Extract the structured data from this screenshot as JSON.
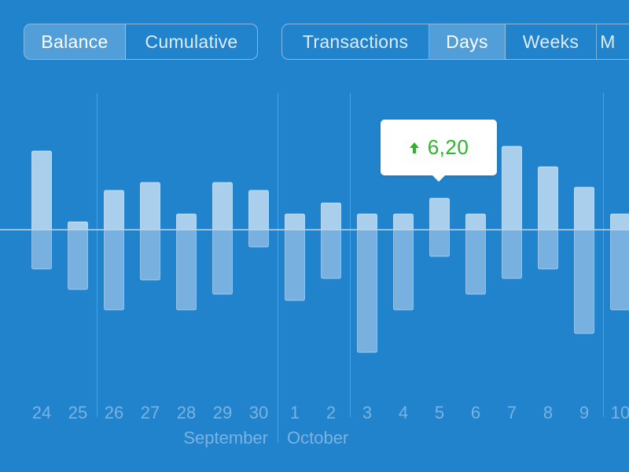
{
  "mode_selector": {
    "items": [
      {
        "label": "Balance",
        "active": true
      },
      {
        "label": "Cumulative",
        "active": false
      }
    ]
  },
  "period_selector": {
    "items": [
      {
        "label": "Transactions",
        "active": false
      },
      {
        "label": "Days",
        "active": true
      },
      {
        "label": "Weeks",
        "active": false
      },
      {
        "label": "M",
        "active": false
      }
    ]
  },
  "tooltip": {
    "icon": "arrow-up-icon",
    "value": "6,20",
    "color": "#2bb52b"
  },
  "colors": {
    "background": "#2283cd",
    "bar_up": "#a9cfec",
    "bar_down": "#78b1e0",
    "baseline": "#b9d8f0",
    "label": "#7bb2df"
  },
  "chart_data": {
    "type": "bar",
    "categories": [
      "24",
      "25",
      "26",
      "27",
      "28",
      "29",
      "30",
      "1",
      "2",
      "3",
      "4",
      "5",
      "6",
      "7",
      "8",
      "9",
      "10"
    ],
    "months": [
      {
        "label": "September"
      },
      {
        "label": "October"
      }
    ],
    "income": [
      10,
      1,
      5,
      6,
      2,
      6,
      5,
      2,
      3.4,
      2,
      2,
      4,
      2,
      10.6,
      8,
      5.4,
      2
    ],
    "expense": [
      -5,
      -7.6,
      -10.2,
      -6.4,
      -10.2,
      -8.2,
      -2.2,
      -9,
      -6.2,
      -15.6,
      -10.2,
      -3.4,
      -8.2,
      -6.2,
      -5,
      -13.2,
      -10.2
    ]
  }
}
